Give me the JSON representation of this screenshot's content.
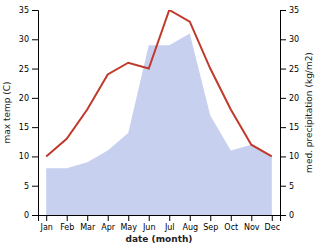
{
  "chart_data": {
    "type": "line",
    "xlabel": "date (month)",
    "ylabel": "max temp (C)",
    "y2label": "med. precipitation (kg/m2)",
    "categories": [
      "Jan",
      "Feb",
      "Mar",
      "Apr",
      "May",
      "Jun",
      "Jul",
      "Aug",
      "Sep",
      "Oct",
      "Nov",
      "Dec"
    ],
    "series": [
      {
        "type": "area",
        "axis": "y2",
        "color": "#c8d0f0",
        "values": [
          8,
          8,
          9,
          11,
          14,
          29,
          29,
          31,
          17,
          11,
          12,
          10
        ]
      },
      {
        "type": "line",
        "color": "#c0392b",
        "values": [
          10,
          13,
          18,
          24,
          26,
          25,
          35,
          33,
          25,
          18,
          12,
          10
        ]
      }
    ],
    "ylim": [
      0,
      35
    ],
    "yticks": [
      0,
      5,
      10,
      15,
      20,
      25,
      30,
      35
    ],
    "y2lim": [
      0,
      35
    ],
    "y2ticks": [
      0,
      5,
      10,
      15,
      20,
      25,
      30,
      35
    ],
    "grid": false
  }
}
